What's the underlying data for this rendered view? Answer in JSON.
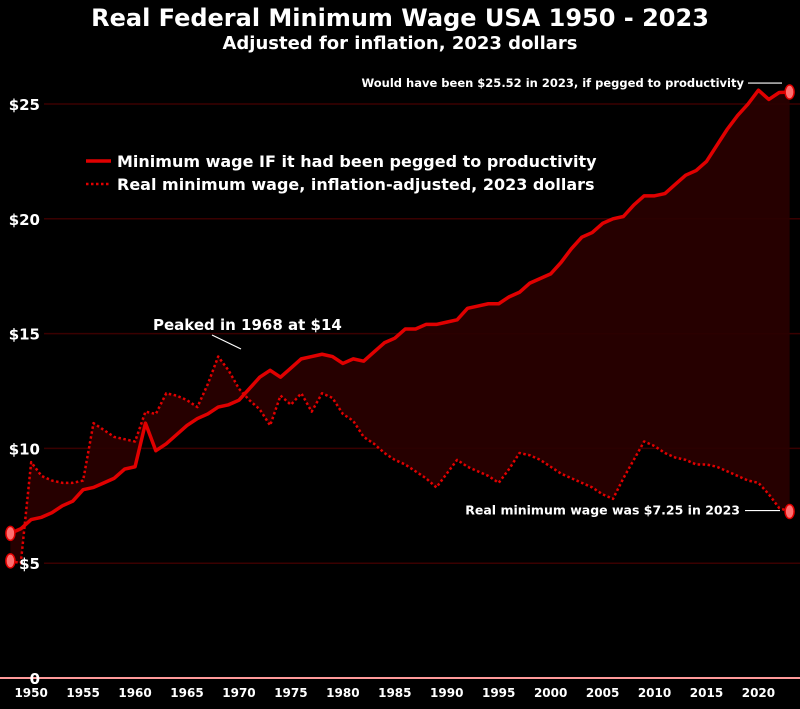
{
  "header": {
    "title": "Real Federal Minimum Wage USA 1950 - 2023",
    "subtitle": "Adjusted for inflation, 2023 dollars"
  },
  "colors": {
    "background": "#000000",
    "series_line": "#e00000",
    "fill": "#2a0000",
    "marker": "#ff7070",
    "gridline": "#3a0000",
    "baseline": "#ff9a9a",
    "text": "#ffffff"
  },
  "chart_data": {
    "type": "line",
    "title": "Real Federal Minimum Wage USA 1950 - 2023",
    "subtitle": "Adjusted for inflation, 2023 dollars",
    "xlabel": "",
    "ylabel": "",
    "xlim": [
      1947,
      2024
    ],
    "ylim": [
      0,
      27.5
    ],
    "grid": "horizontal",
    "legend_position": "upper-left",
    "x_ticks": [
      1950,
      1955,
      1960,
      1965,
      1970,
      1975,
      1980,
      1985,
      1990,
      1995,
      2000,
      2005,
      2010,
      2015,
      2020
    ],
    "x_tick_labels": [
      "1950",
      "1955",
      "1960",
      "1965",
      "1970",
      "1975",
      "1980",
      "1985",
      "1990",
      "1995",
      "2000",
      "2005",
      "2010",
      "2015",
      "2020"
    ],
    "y_ticks": [
      0,
      5,
      10,
      15,
      20,
      25
    ],
    "y_tick_labels": [
      "0",
      "$5",
      "$10",
      "$15",
      "$20",
      "$25"
    ],
    "series": [
      {
        "name": "Minimum wage IF it had been pegged to productivity",
        "style": "solid",
        "points": [
          [
            1948,
            6.3
          ],
          [
            1949,
            6.5
          ],
          [
            1950,
            6.9
          ],
          [
            1951,
            7.0
          ],
          [
            1952,
            7.2
          ],
          [
            1953,
            7.5
          ],
          [
            1954,
            7.7
          ],
          [
            1955,
            8.2
          ],
          [
            1956,
            8.3
          ],
          [
            1957,
            8.5
          ],
          [
            1958,
            8.7
          ],
          [
            1959,
            9.1
          ],
          [
            1960,
            9.2
          ],
          [
            1961,
            11.1
          ],
          [
            1962,
            9.9
          ],
          [
            1963,
            10.2
          ],
          [
            1964,
            10.6
          ],
          [
            1965,
            11.0
          ],
          [
            1966,
            11.3
          ],
          [
            1967,
            11.5
          ],
          [
            1968,
            11.8
          ],
          [
            1969,
            11.9
          ],
          [
            1970,
            12.1
          ],
          [
            1971,
            12.6
          ],
          [
            1972,
            13.1
          ],
          [
            1973,
            13.4
          ],
          [
            1974,
            13.1
          ],
          [
            1975,
            13.5
          ],
          [
            1976,
            13.9
          ],
          [
            1977,
            14.0
          ],
          [
            1978,
            14.1
          ],
          [
            1979,
            14.0
          ],
          [
            1980,
            13.7
          ],
          [
            1981,
            13.9
          ],
          [
            1982,
            13.8
          ],
          [
            1983,
            14.2
          ],
          [
            1984,
            14.6
          ],
          [
            1985,
            14.8
          ],
          [
            1986,
            15.2
          ],
          [
            1987,
            15.2
          ],
          [
            1988,
            15.4
          ],
          [
            1989,
            15.4
          ],
          [
            1990,
            15.5
          ],
          [
            1991,
            15.6
          ],
          [
            1992,
            16.1
          ],
          [
            1993,
            16.2
          ],
          [
            1994,
            16.3
          ],
          [
            1995,
            16.3
          ],
          [
            1996,
            16.6
          ],
          [
            1997,
            16.8
          ],
          [
            1998,
            17.2
          ],
          [
            1999,
            17.4
          ],
          [
            2000,
            17.6
          ],
          [
            2001,
            18.1
          ],
          [
            2002,
            18.7
          ],
          [
            2003,
            19.2
          ],
          [
            2004,
            19.4
          ],
          [
            2005,
            19.8
          ],
          [
            2006,
            20.0
          ],
          [
            2007,
            20.1
          ],
          [
            2008,
            20.6
          ],
          [
            2009,
            21.0
          ],
          [
            2010,
            21.0
          ],
          [
            2011,
            21.1
          ],
          [
            2012,
            21.5
          ],
          [
            2013,
            21.9
          ],
          [
            2014,
            22.1
          ],
          [
            2015,
            22.5
          ],
          [
            2016,
            23.2
          ],
          [
            2017,
            23.9
          ],
          [
            2018,
            24.5
          ],
          [
            2019,
            25.0
          ],
          [
            2020,
            25.6
          ],
          [
            2021,
            25.2
          ],
          [
            2022,
            25.5
          ],
          [
            2023,
            25.52
          ]
        ]
      },
      {
        "name": "Real minimum wage, inflation-adjusted, 2023 dollars",
        "style": "dotted",
        "points": [
          [
            1948,
            5.1
          ],
          [
            1949,
            5.0
          ],
          [
            1950,
            9.4
          ],
          [
            1951,
            8.8
          ],
          [
            1952,
            8.6
          ],
          [
            1953,
            8.5
          ],
          [
            1954,
            8.5
          ],
          [
            1955,
            8.6
          ],
          [
            1956,
            11.1
          ],
          [
            1957,
            10.8
          ],
          [
            1958,
            10.5
          ],
          [
            1959,
            10.4
          ],
          [
            1960,
            10.3
          ],
          [
            1961,
            11.6
          ],
          [
            1962,
            11.5
          ],
          [
            1963,
            12.4
          ],
          [
            1964,
            12.3
          ],
          [
            1965,
            12.1
          ],
          [
            1966,
            11.8
          ],
          [
            1967,
            12.8
          ],
          [
            1968,
            14.0
          ],
          [
            1969,
            13.4
          ],
          [
            1970,
            12.6
          ],
          [
            1971,
            12.1
          ],
          [
            1972,
            11.7
          ],
          [
            1973,
            11.0
          ],
          [
            1974,
            12.3
          ],
          [
            1975,
            11.9
          ],
          [
            1976,
            12.4
          ],
          [
            1977,
            11.6
          ],
          [
            1978,
            12.4
          ],
          [
            1979,
            12.2
          ],
          [
            1980,
            11.5
          ],
          [
            1981,
            11.2
          ],
          [
            1982,
            10.5
          ],
          [
            1983,
            10.2
          ],
          [
            1984,
            9.8
          ],
          [
            1985,
            9.5
          ],
          [
            1986,
            9.3
          ],
          [
            1987,
            9.0
          ],
          [
            1988,
            8.7
          ],
          [
            1989,
            8.3
          ],
          [
            1990,
            8.9
          ],
          [
            1991,
            9.5
          ],
          [
            1992,
            9.2
          ],
          [
            1993,
            9.0
          ],
          [
            1994,
            8.8
          ],
          [
            1995,
            8.5
          ],
          [
            1996,
            9.1
          ],
          [
            1997,
            9.8
          ],
          [
            1998,
            9.7
          ],
          [
            1999,
            9.5
          ],
          [
            2000,
            9.2
          ],
          [
            2001,
            8.9
          ],
          [
            2002,
            8.7
          ],
          [
            2003,
            8.5
          ],
          [
            2004,
            8.3
          ],
          [
            2005,
            8.0
          ],
          [
            2006,
            7.8
          ],
          [
            2007,
            8.7
          ],
          [
            2008,
            9.5
          ],
          [
            2009,
            10.3
          ],
          [
            2010,
            10.1
          ],
          [
            2011,
            9.8
          ],
          [
            2012,
            9.6
          ],
          [
            2013,
            9.5
          ],
          [
            2014,
            9.3
          ],
          [
            2015,
            9.3
          ],
          [
            2016,
            9.2
          ],
          [
            2017,
            9.0
          ],
          [
            2018,
            8.8
          ],
          [
            2019,
            8.6
          ],
          [
            2020,
            8.5
          ],
          [
            2021,
            8.0
          ],
          [
            2022,
            7.4
          ],
          [
            2023,
            7.25
          ]
        ]
      }
    ],
    "markers": [
      {
        "x": 1948,
        "y": 6.3
      },
      {
        "x": 1948,
        "y": 5.1
      },
      {
        "x": 2023,
        "y": 25.52
      },
      {
        "x": 2023,
        "y": 7.25
      }
    ],
    "annotations": [
      {
        "text": "Would have been $25.52 in 2023, if pegged to productivity",
        "x": 2023,
        "y": 25.52
      },
      {
        "text": "Peaked in 1968 at $14",
        "x": 1968,
        "y": 14.0
      },
      {
        "text": "Real minimum wage was $7.25 in 2023",
        "x": 2023,
        "y": 7.25
      }
    ]
  }
}
